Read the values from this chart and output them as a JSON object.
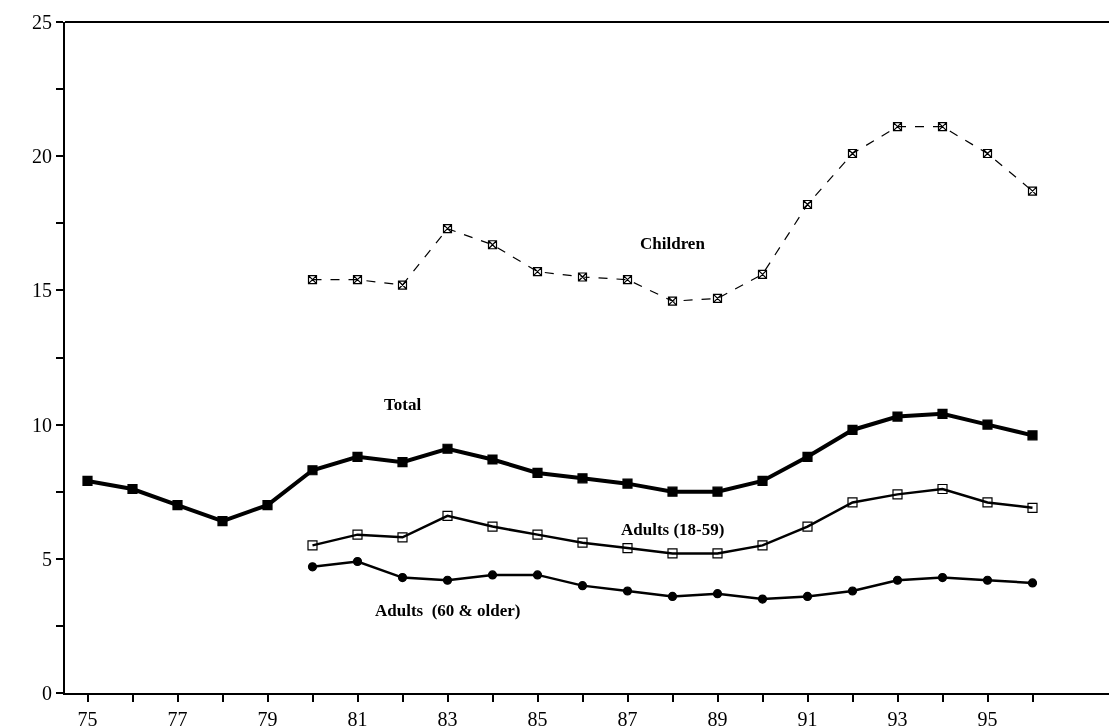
{
  "chart_data": {
    "type": "line",
    "x": [
      75,
      76,
      77,
      78,
      79,
      80,
      81,
      82,
      83,
      84,
      85,
      86,
      87,
      88,
      89,
      90,
      91,
      92,
      93,
      94,
      95,
      96
    ],
    "series": [
      {
        "name": "Children",
        "color": "#000000",
        "marker": "cross",
        "line_style": "dashed",
        "values": [
          null,
          null,
          null,
          null,
          null,
          15.4,
          15.4,
          15.2,
          17.3,
          16.7,
          15.7,
          15.5,
          15.4,
          14.6,
          14.7,
          15.6,
          18.2,
          20.1,
          21.1,
          21.1,
          20.1,
          18.7
        ]
      },
      {
        "name": "Total",
        "color": "#000000",
        "marker": "square",
        "line_style": "solid",
        "values": [
          7.9,
          7.6,
          7.0,
          6.4,
          7.0,
          8.3,
          8.8,
          8.6,
          9.1,
          8.7,
          8.2,
          8.0,
          7.8,
          7.5,
          7.5,
          7.9,
          8.8,
          9.8,
          10.3,
          10.4,
          10.0,
          9.6
        ]
      },
      {
        "name": "Adults (18-59)",
        "color": "#000000",
        "marker": "square",
        "line_style": "solid",
        "values": [
          null,
          null,
          null,
          null,
          null,
          5.5,
          5.9,
          5.8,
          6.6,
          6.2,
          5.9,
          5.6,
          5.4,
          5.2,
          5.2,
          5.5,
          6.2,
          7.1,
          7.4,
          7.6,
          7.1,
          6.9
        ]
      },
      {
        "name": "Adults  (60 & older)",
        "color": "#000000",
        "marker": "circle",
        "line_style": "solid",
        "values": [
          null,
          null,
          null,
          null,
          null,
          4.7,
          4.9,
          4.3,
          4.2,
          4.4,
          4.4,
          4.0,
          3.8,
          3.6,
          3.7,
          3.5,
          3.6,
          3.8,
          4.2,
          4.3,
          4.2,
          4.1
        ]
      }
    ],
    "xlim": [
      74.5,
      97.7
    ],
    "xticks": [
      75,
      {
        "value": 76,
        "label": null
      },
      77,
      {
        "value": 78,
        "label": null
      },
      79,
      {
        "value": 80,
        "label": null
      },
      81,
      {
        "value": 82,
        "label": null
      },
      83,
      {
        "value": 84,
        "label": null
      },
      85,
      {
        "value": 86,
        "label": null
      },
      87,
      {
        "value": 88,
        "label": null
      },
      89,
      {
        "value": 90,
        "label": null
      },
      91,
      {
        "value": 92,
        "label": null
      },
      93,
      {
        "value": 94,
        "label": null
      },
      95,
      {
        "value": 96,
        "label": null
      }
    ],
    "ylim": [
      0,
      25
    ],
    "yticks": [
      0,
      {
        "value": 2.5,
        "label": null
      },
      5,
      {
        "value": 7.5,
        "label": null
      },
      10,
      {
        "value": 12.5,
        "label": null
      },
      15,
      {
        "value": 17.5,
        "label": null
      },
      20,
      {
        "value": 22.5,
        "label": null
      },
      25
    ],
    "grid": false,
    "legend": false
  }
}
